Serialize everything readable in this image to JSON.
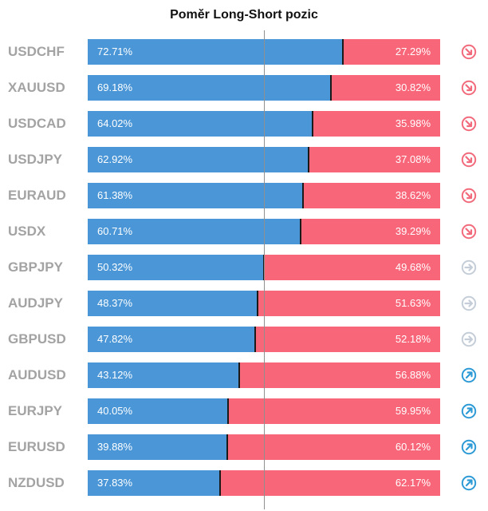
{
  "title": "Poměr Long-Short pozic",
  "colors": {
    "long": "#4a96d6",
    "short": "#f86679",
    "down": "#f26b7c",
    "neutral": "#c5ced8",
    "up": "#2e9bd6"
  },
  "chart_data": {
    "type": "bar",
    "stacked": true,
    "orientation": "horizontal",
    "title": "Poměr Long-Short pozic",
    "categories": [
      "USDCHF",
      "XAUUSD",
      "USDCAD",
      "USDJPY",
      "EURAUD",
      "USDX",
      "GBPJPY",
      "AUDJPY",
      "GBPUSD",
      "AUDUSD",
      "EURJPY",
      "EURUSD",
      "NZDUSD"
    ],
    "series": [
      {
        "values": [
          72.71,
          69.18,
          64.02,
          62.92,
          61.38,
          60.71,
          50.32,
          48.37,
          47.82,
          43.12,
          40.05,
          39.88,
          37.83
        ]
      },
      {
        "values": [
          27.29,
          30.82,
          35.98,
          37.08,
          38.62,
          39.29,
          49.68,
          51.63,
          52.18,
          56.88,
          59.95,
          60.12,
          62.17
        ]
      }
    ],
    "xlim": [
      0,
      100
    ]
  },
  "rows": [
    {
      "symbol": "USDCHF",
      "long": "72.71%",
      "short": "27.29%",
      "trend_icon": "arrow-down-right-icon",
      "trend": "down"
    },
    {
      "symbol": "XAUUSD",
      "long": "69.18%",
      "short": "30.82%",
      "trend_icon": "arrow-down-right-icon",
      "trend": "down"
    },
    {
      "symbol": "USDCAD",
      "long": "64.02%",
      "short": "35.98%",
      "trend_icon": "arrow-down-right-icon",
      "trend": "down"
    },
    {
      "symbol": "USDJPY",
      "long": "62.92%",
      "short": "37.08%",
      "trend_icon": "arrow-down-right-icon",
      "trend": "down"
    },
    {
      "symbol": "EURAUD",
      "long": "61.38%",
      "short": "38.62%",
      "trend_icon": "arrow-down-right-icon",
      "trend": "down"
    },
    {
      "symbol": "USDX",
      "long": "60.71%",
      "short": "39.29%",
      "trend_icon": "arrow-down-right-icon",
      "trend": "down"
    },
    {
      "symbol": "GBPJPY",
      "long": "50.32%",
      "short": "49.68%",
      "trend_icon": "arrow-right-icon",
      "trend": "neutral"
    },
    {
      "symbol": "AUDJPY",
      "long": "48.37%",
      "short": "51.63%",
      "trend_icon": "arrow-right-icon",
      "trend": "neutral"
    },
    {
      "symbol": "GBPUSD",
      "long": "47.82%",
      "short": "52.18%",
      "trend_icon": "arrow-right-icon",
      "trend": "neutral"
    },
    {
      "symbol": "AUDUSD",
      "long": "43.12%",
      "short": "56.88%",
      "trend_icon": "arrow-up-right-icon",
      "trend": "up"
    },
    {
      "symbol": "EURJPY",
      "long": "40.05%",
      "short": "59.95%",
      "trend_icon": "arrow-up-right-icon",
      "trend": "up"
    },
    {
      "symbol": "EURUSD",
      "long": "39.88%",
      "short": "60.12%",
      "trend_icon": "arrow-up-right-icon",
      "trend": "up"
    },
    {
      "symbol": "NZDUSD",
      "long": "37.83%",
      "short": "62.17%",
      "trend_icon": "arrow-up-right-icon",
      "trend": "up"
    }
  ]
}
